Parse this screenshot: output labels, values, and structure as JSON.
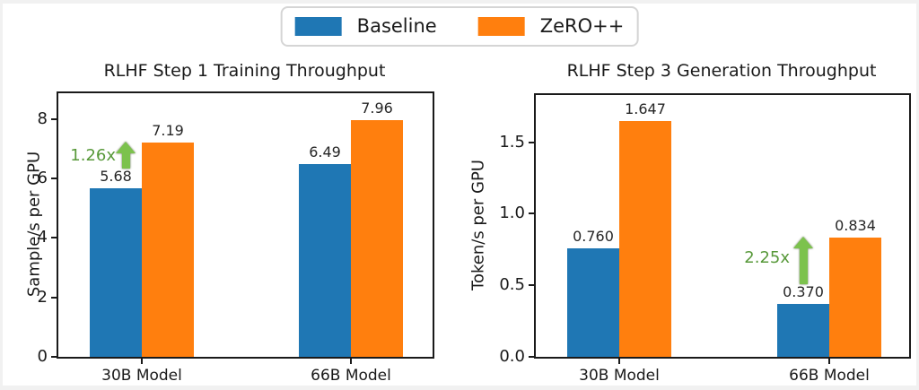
{
  "legend": {
    "items": [
      {
        "label": "Baseline",
        "color": "#1f77b4"
      },
      {
        "label": "ZeRO++",
        "color": "#ff7f0e"
      }
    ]
  },
  "chart_data": [
    {
      "type": "bar",
      "title": "RLHF Step 1 Training Throughput",
      "ylabel": "Sample/s per GPU",
      "xlabel": "",
      "categories": [
        "30B Model",
        "66B Model"
      ],
      "series": [
        {
          "name": "Baseline",
          "color": "#1f77b4",
          "values": [
            5.68,
            6.49
          ],
          "labels": [
            "5.68",
            "6.49"
          ]
        },
        {
          "name": "ZeRO++",
          "color": "#ff7f0e",
          "values": [
            7.19,
            7.96
          ],
          "labels": [
            "7.19",
            "7.96"
          ]
        }
      ],
      "ylim": [
        0,
        8.86
      ],
      "ytick_values": [
        0,
        2,
        4,
        6,
        8
      ],
      "yticks": [
        "0",
        "2",
        "4",
        "6",
        "8"
      ],
      "grid": false,
      "legend_position": "top-center-shared",
      "annotation": {
        "text": "1.26x",
        "group": "30B Model",
        "color": "#58993a",
        "arrow_fill": "#7cc24d"
      }
    },
    {
      "type": "bar",
      "title": "RLHF Step 3 Generation Throughput",
      "ylabel": "Token/s per GPU",
      "xlabel": "",
      "categories": [
        "30B Model",
        "66B Model"
      ],
      "series": [
        {
          "name": "Baseline",
          "color": "#1f77b4",
          "values": [
            0.76,
            0.37
          ],
          "labels": [
            "0.760",
            "0.370"
          ]
        },
        {
          "name": "ZeRO++",
          "color": "#ff7f0e",
          "values": [
            1.647,
            0.834
          ],
          "labels": [
            "1.647",
            "0.834"
          ]
        }
      ],
      "ylim": [
        0,
        1.83
      ],
      "ytick_values": [
        0,
        0.5,
        1.0,
        1.5
      ],
      "yticks": [
        "0.0",
        "0.5",
        "1.0",
        "1.5"
      ],
      "grid": false,
      "legend_position": "top-center-shared",
      "annotation": {
        "text": "2.25x",
        "group": "66B Model",
        "color": "#58993a",
        "arrow_fill": "#7cc24d"
      }
    }
  ]
}
